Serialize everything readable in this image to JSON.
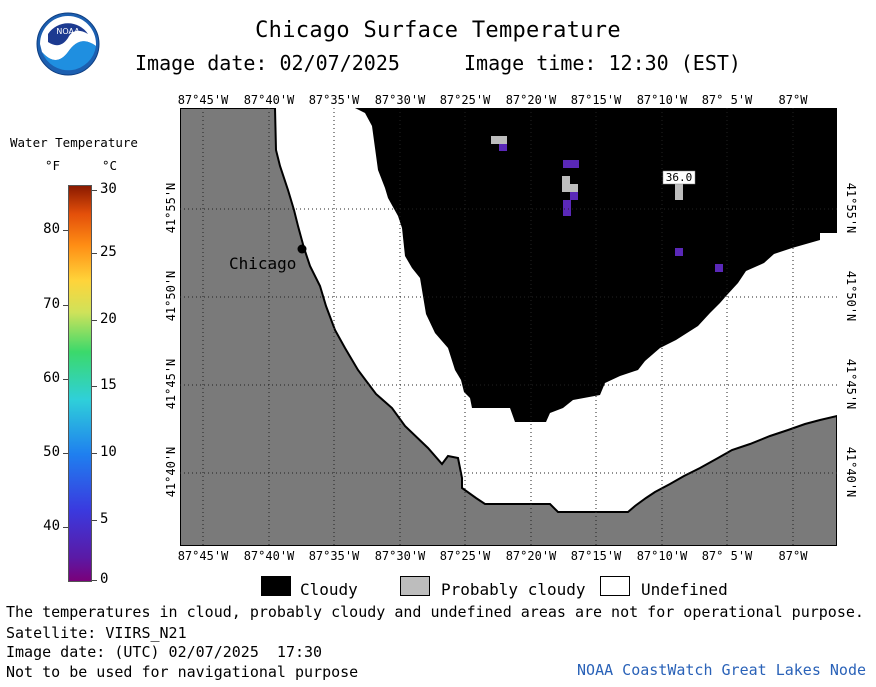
{
  "header": {
    "title": "Chicago Surface Temperature",
    "image_date": "Image date: 02/07/2025",
    "image_time": "Image time: 12:30 (EST)"
  },
  "logo": {
    "name": "noaa-logo",
    "text": "NOAA"
  },
  "legend": {
    "title": "Water Temperature",
    "unit_f": "°F",
    "unit_c": "°C",
    "ticks_f": [
      "80",
      "70",
      "60",
      "50",
      "40"
    ],
    "ticks_c": [
      "30",
      "25",
      "20",
      "15",
      "10",
      "5",
      "0"
    ]
  },
  "map": {
    "lon_labels": [
      "87°45'W",
      "87°40'W",
      "87°35'W",
      "87°30'W",
      "87°25'W",
      "87°20'W",
      "87°15'W",
      "87°10'W",
      "87° 5'W",
      "87°W"
    ],
    "lat_labels": [
      "41°55'N",
      "41°50'N",
      "41°45'N",
      "41°40'N"
    ],
    "city_label": "Chicago",
    "sst_label": "36.0",
    "colors": {
      "land": "#7a7a7a",
      "cloudy": "#000000",
      "probably_cloudy": "#bdbdbd",
      "undefined": "#ffffff",
      "cold_water": "#5a28b8"
    }
  },
  "key": {
    "cloudy": "Cloudy",
    "probably_cloudy": "Probably cloudy",
    "undefined": "Undefined"
  },
  "notes": {
    "disclaimer": "The temperatures in cloud, probably cloudy and undefined areas are not for operational purpose.",
    "satellite": "Satellite: VIIRS_N21",
    "utc_date": "Image date: (UTC) 02/07/2025  17:30",
    "navigation": "Not to be used for navigational purpose",
    "credit": "NOAA CoastWatch Great Lakes Node"
  }
}
